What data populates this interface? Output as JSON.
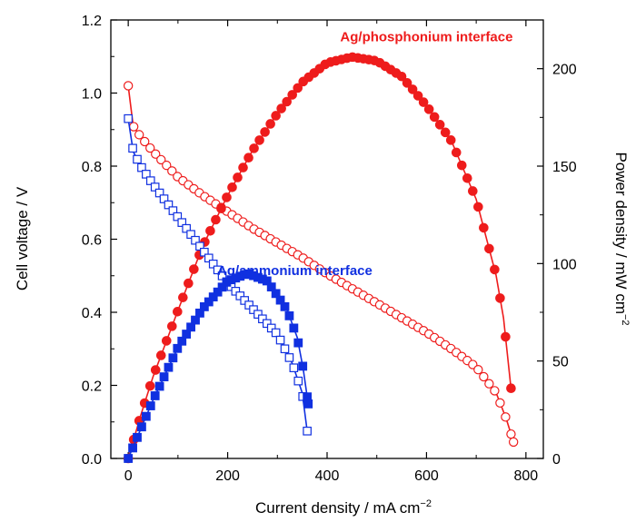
{
  "chart_data": {
    "type": "line",
    "xlabel": "Current density / mA cm",
    "xlabel_sup": "−2",
    "ylabel_left": "Cell voltage / V",
    "ylabel_right": "Power density / mW cm",
    "ylabel_right_sup": "−2",
    "xlim": [
      -35,
      835
    ],
    "ylim_left": [
      0,
      1.2
    ],
    "ylim_right": [
      0,
      225
    ],
    "x_ticks": [
      0,
      200,
      400,
      600,
      800
    ],
    "x_tick_labels": [
      "0",
      "200",
      "400",
      "600",
      "800"
    ],
    "y_left_ticks": [
      0,
      0.2,
      0.4,
      0.6,
      0.8,
      1.0,
      1.2
    ],
    "y_left_tick_labels": [
      "0.0",
      "0.2",
      "0.4",
      "0.6",
      "0.8",
      "1.0",
      "1.2"
    ],
    "y_right_ticks": [
      0,
      50,
      100,
      150,
      200
    ],
    "y_right_tick_labels": [
      "0",
      "50",
      "100",
      "150",
      "200"
    ],
    "grid": false,
    "colors": {
      "red": "#ee1c1c",
      "blue": "#1030e0"
    },
    "annotations": [
      {
        "text": "Ag/phosphonium interface",
        "color": "#ee1c1c",
        "x": 600,
        "y_right": 214
      },
      {
        "text": "Ag/ammonium interface",
        "color": "#1030e0",
        "x": 335,
        "y_right": 94
      }
    ],
    "series": [
      {
        "axis": "left",
        "color": "#ee1c1c",
        "marker": "open-circle",
        "points": [
          [
            0,
            1.02
          ],
          [
            10,
            0.91
          ],
          [
            25,
            0.88
          ],
          [
            50,
            0.84
          ],
          [
            100,
            0.77
          ],
          [
            150,
            0.72
          ],
          [
            200,
            0.675
          ],
          [
            250,
            0.63
          ],
          [
            300,
            0.59
          ],
          [
            350,
            0.55
          ],
          [
            400,
            0.505
          ],
          [
            450,
            0.465
          ],
          [
            500,
            0.425
          ],
          [
            550,
            0.385
          ],
          [
            600,
            0.345
          ],
          [
            650,
            0.3
          ],
          [
            700,
            0.25
          ],
          [
            740,
            0.18
          ],
          [
            760,
            0.11
          ],
          [
            775,
            0.045
          ]
        ]
      },
      {
        "axis": "right",
        "color": "#ee1c1c",
        "marker": "filled-circle",
        "points": [
          [
            0,
            0
          ],
          [
            25,
            22
          ],
          [
            50,
            42
          ],
          [
            100,
            76
          ],
          [
            150,
            109
          ],
          [
            200,
            135
          ],
          [
            250,
            158
          ],
          [
            300,
            177
          ],
          [
            350,
            193
          ],
          [
            400,
            203
          ],
          [
            450,
            206
          ],
          [
            500,
            204
          ],
          [
            550,
            196
          ],
          [
            600,
            181
          ],
          [
            650,
            163
          ],
          [
            700,
            133
          ],
          [
            740,
            94
          ],
          [
            755,
            72
          ],
          [
            770,
            36
          ]
        ]
      },
      {
        "axis": "left",
        "color": "#1030e0",
        "marker": "open-square",
        "points": [
          [
            0,
            0.93
          ],
          [
            10,
            0.84
          ],
          [
            25,
            0.8
          ],
          [
            50,
            0.75
          ],
          [
            100,
            0.66
          ],
          [
            150,
            0.57
          ],
          [
            200,
            0.48
          ],
          [
            250,
            0.41
          ],
          [
            300,
            0.34
          ],
          [
            330,
            0.26
          ],
          [
            350,
            0.18
          ],
          [
            360,
            0.075
          ]
        ]
      },
      {
        "axis": "right",
        "color": "#1030e0",
        "marker": "filled-square",
        "points": [
          [
            0,
            0
          ],
          [
            25,
            15
          ],
          [
            50,
            30
          ],
          [
            100,
            57
          ],
          [
            150,
            77
          ],
          [
            200,
            91
          ],
          [
            240,
            95
          ],
          [
            280,
            91
          ],
          [
            320,
            76
          ],
          [
            340,
            62
          ],
          [
            352,
            46
          ],
          [
            362,
            28
          ]
        ]
      }
    ]
  }
}
